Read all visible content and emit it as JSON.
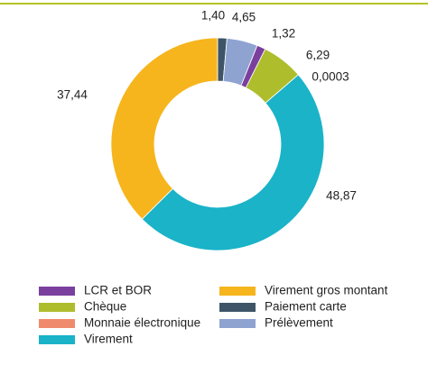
{
  "chart_data": {
    "type": "donut",
    "categories": [
      "LCR et BOR",
      "Chèque",
      "Monnaie électronique",
      "Virement",
      "Virement gros montant",
      "Paiement carte",
      "Prélèvement"
    ],
    "values": [
      1.32,
      6.29,
      0.0003,
      48.87,
      37.44,
      1.4,
      4.65
    ],
    "value_labels": [
      "1,32",
      "6,29",
      "0,0003",
      "48,87",
      "37,44",
      "1,40",
      "4,65"
    ],
    "colors": [
      "#7b3f9e",
      "#aebd2c",
      "#f08a6c",
      "#1ab3c8",
      "#f6b51d",
      "#3d5566",
      "#8fa3d1"
    ]
  }
}
